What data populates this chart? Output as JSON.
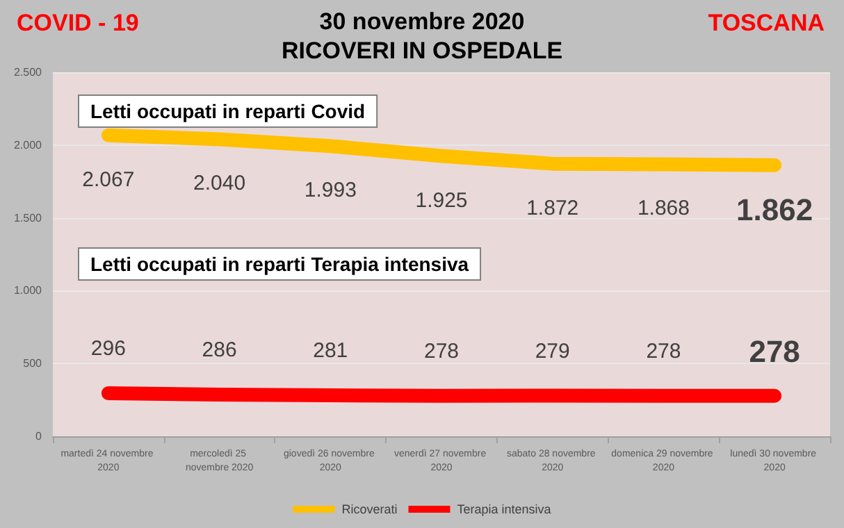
{
  "chart_data": {
    "type": "line",
    "title": "30 novembre 2020",
    "subtitle": "RICOVERI IN OSPEDALE",
    "categories": [
      "martedì 24 novembre 2020",
      "mercoledì 25 novembre 2020",
      "giovedì 26 novembre 2020",
      "venerdì 27 novembre 2020",
      "sabato 28 novembre 2020",
      "domenica 29 novembre 2020",
      "lunedì 30 novembre 2020"
    ],
    "series": [
      {
        "name": "Ricoverati",
        "color": "#ffc000",
        "values": [
          2067,
          2040,
          1993,
          1925,
          1872,
          1868,
          1862
        ],
        "value_labels": [
          "2.067",
          "2.040",
          "1.993",
          "1.925",
          "1.872",
          "1.868",
          "1.862"
        ]
      },
      {
        "name": "Terapia intensiva",
        "color": "#ff0000",
        "values": [
          296,
          286,
          281,
          278,
          279,
          278,
          278
        ],
        "value_labels": [
          "296",
          "286",
          "281",
          "278",
          "279",
          "278",
          "278"
        ]
      }
    ],
    "ylim": [
      0,
      2500
    ],
    "yticks": [
      0,
      500,
      {
        "value": 1000,
        "label": "1.000"
      },
      {
        "value": 1500,
        "label": "1.500"
      },
      {
        "value": 2000,
        "label": "2.000"
      },
      {
        "value": 2500,
        "label": "2.500"
      }
    ],
    "grid": "y",
    "legend": "bottom",
    "line_style": "solid",
    "annotations": [
      "COVID - 19",
      "TOSCANA",
      "Letti occupati in reparti Covid",
      "Letti occupati in reparti Terapia intensiva"
    ]
  }
}
